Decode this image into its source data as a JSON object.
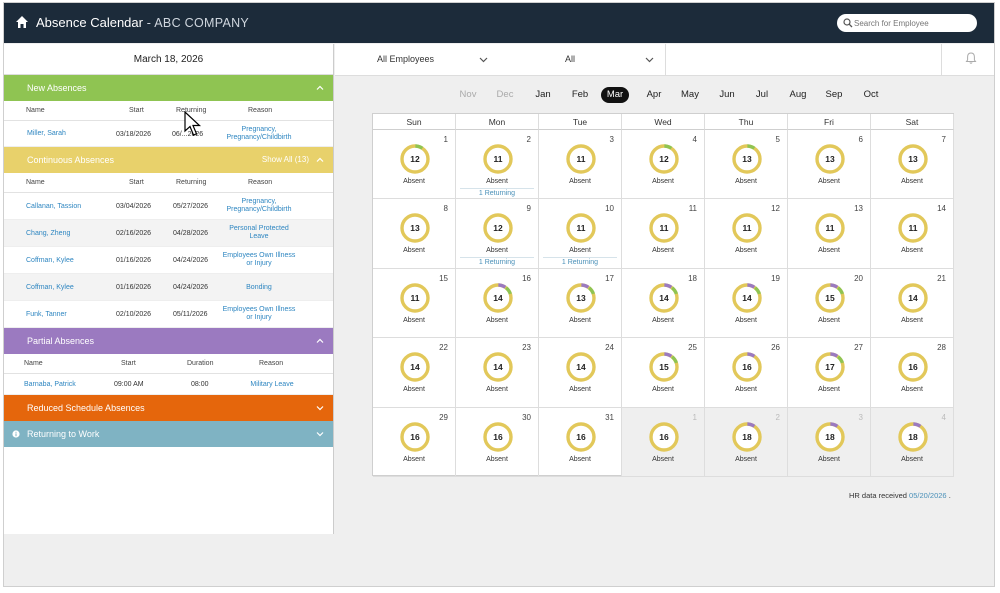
{
  "header": {
    "title": "Absence Calendar",
    "separator": " - ",
    "company": "ABC COMPANY",
    "search_placeholder": "Search for Employee",
    "home_icon": "home-icon",
    "search_icon": "search-icon"
  },
  "left": {
    "date": "March 18, 2026",
    "new_absences": {
      "title": "New Absences",
      "columns": [
        "Name",
        "Start",
        "Returning",
        "Reason"
      ],
      "rows": [
        {
          "name": "Miller, Sarah",
          "start": "03/18/2026",
          "returning": "06/...2026",
          "reason_1": "Pregnancy,",
          "reason_2": "Pregnancy/Childbirth"
        }
      ]
    },
    "continuous_absences": {
      "title": "Continuous Absences",
      "show_all": "Show All (13)",
      "columns": [
        "Name",
        "Start",
        "Returning",
        "Reason"
      ],
      "rows": [
        {
          "name": "Callanan, Tassion",
          "start": "03/04/2026",
          "returning": "05/27/2026",
          "reason_1": "Pregnancy,",
          "reason_2": "Pregnancy/Childbirth"
        },
        {
          "name": "Chang, Zheng",
          "start": "02/16/2026",
          "returning": "04/28/2026",
          "reason_1": "Personal Protected",
          "reason_2": "Leave"
        },
        {
          "name": "Coffman, Kylee",
          "start": "01/16/2026",
          "returning": "04/24/2026",
          "reason_1": "Employees Own Illness",
          "reason_2": "or Injury"
        },
        {
          "name": "Coffman, Kylee",
          "start": "01/16/2026",
          "returning": "04/24/2026",
          "reason_1": "Bonding",
          "reason_2": ""
        },
        {
          "name": "Funk, Tanner",
          "start": "02/10/2026",
          "returning": "05/11/2026",
          "reason_1": "Employees Own Illness",
          "reason_2": "or Injury"
        }
      ]
    },
    "partial_absences": {
      "title": "Partial Absences",
      "columns": [
        "Name",
        "Start",
        "Duration",
        "Reason"
      ],
      "rows": [
        {
          "name": "Barnaba, Patrick",
          "start": "09:00 AM",
          "duration": "08:00",
          "reason_1": "Military Leave"
        }
      ]
    },
    "reduced_schedule": {
      "title": "Reduced Schedule Absences"
    },
    "returning_to_work": {
      "title": "Returning to Work",
      "icon": "info-icon"
    }
  },
  "filters": {
    "employees": "All Employees",
    "second": "All",
    "bell_icon": "bell-icon"
  },
  "months": {
    "items": [
      "Nov",
      "Dec",
      "Jan",
      "Feb",
      "Mar",
      "Apr",
      "May",
      "Jun",
      "Jul",
      "Aug",
      "Sep",
      "Oct"
    ],
    "past": [
      "Nov",
      "Dec"
    ],
    "active": "Mar"
  },
  "calendar": {
    "weekdays": [
      "Sun",
      "Mon",
      "Tue",
      "Wed",
      "Thu",
      "Fri",
      "Sat"
    ],
    "absent_label": "Absent",
    "returning_label": "1 Returning",
    "colors": {
      "ring": "#e2c85a",
      "green": "#8fc452",
      "purple": "#9b7ac0",
      "other_bg": "#efefef"
    },
    "weeks": [
      [
        {
          "day": "1",
          "count": "12",
          "segments": [
            "green"
          ]
        },
        {
          "day": "2",
          "count": "11",
          "returning": true
        },
        {
          "day": "3",
          "count": "11"
        },
        {
          "day": "4",
          "count": "12",
          "segments": [
            "green"
          ]
        },
        {
          "day": "5",
          "count": "13",
          "segments": [
            "green"
          ]
        },
        {
          "day": "6",
          "count": "13"
        },
        {
          "day": "7",
          "count": "13"
        }
      ],
      [
        {
          "day": "8",
          "count": "13"
        },
        {
          "day": "9",
          "count": "12",
          "returning": true
        },
        {
          "day": "10",
          "count": "11",
          "returning": true
        },
        {
          "day": "11",
          "count": "11"
        },
        {
          "day": "12",
          "count": "11"
        },
        {
          "day": "13",
          "count": "11"
        },
        {
          "day": "14",
          "count": "11"
        }
      ],
      [
        {
          "day": "15",
          "count": "11"
        },
        {
          "day": "16",
          "count": "14",
          "segments": [
            "purple",
            "green"
          ]
        },
        {
          "day": "17",
          "count": "13",
          "segments": [
            "purple",
            "green"
          ]
        },
        {
          "day": "18",
          "count": "14",
          "segments": [
            "purple",
            "green"
          ]
        },
        {
          "day": "19",
          "count": "14",
          "segments": [
            "purple",
            "green"
          ]
        },
        {
          "day": "20",
          "count": "15",
          "segments": [
            "purple",
            "green"
          ]
        },
        {
          "day": "21",
          "count": "14"
        }
      ],
      [
        {
          "day": "22",
          "count": "14"
        },
        {
          "day": "23",
          "count": "14"
        },
        {
          "day": "24",
          "count": "14"
        },
        {
          "day": "25",
          "count": "15",
          "segments": [
            "purple",
            "green"
          ]
        },
        {
          "day": "26",
          "count": "16",
          "segments": [
            "purple"
          ]
        },
        {
          "day": "27",
          "count": "17",
          "segments": [
            "purple",
            "green"
          ]
        },
        {
          "day": "28",
          "count": "16"
        }
      ],
      [
        {
          "day": "29",
          "count": "16"
        },
        {
          "day": "30",
          "count": "16"
        },
        {
          "day": "31",
          "count": "16"
        },
        {
          "day": "1",
          "count": "16",
          "other": true
        },
        {
          "day": "2",
          "count": "18",
          "other": true,
          "segments": [
            "purple"
          ]
        },
        {
          "day": "3",
          "count": "18",
          "other": true,
          "segments": [
            "purple"
          ]
        },
        {
          "day": "4",
          "count": "18",
          "other": true,
          "segments": [
            "purple"
          ]
        }
      ]
    ]
  },
  "footer": {
    "hr_label": "HR data received",
    "hr_date": "05/20/2026",
    "hr_suffix": "."
  }
}
